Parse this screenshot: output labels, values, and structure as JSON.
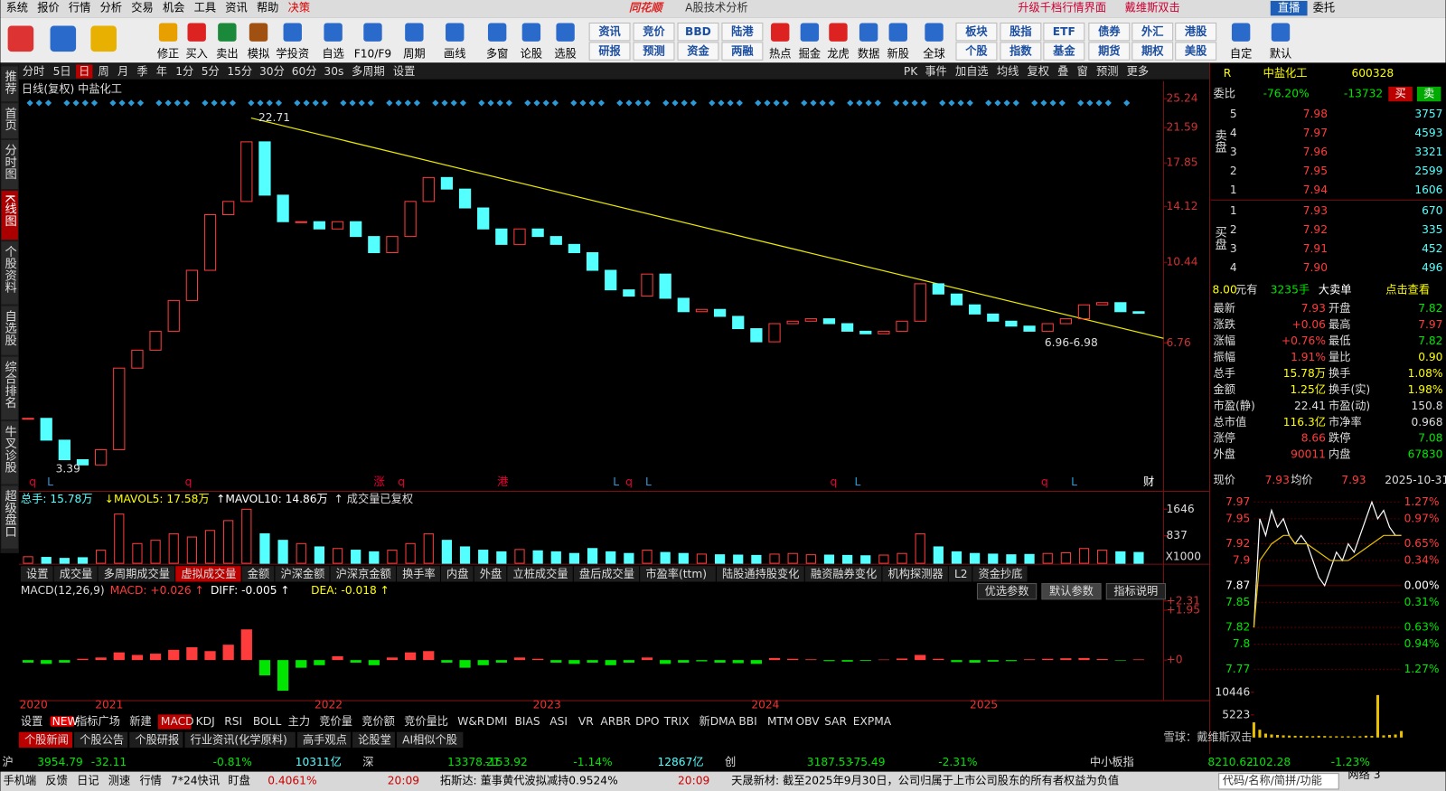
{
  "menu": {
    "items": [
      "系统",
      "报价",
      "行情",
      "分析",
      "交易",
      "机会",
      "工具",
      "资讯",
      "帮助",
      "决策"
    ],
    "logo": "同花顺",
    "mode": "A股技术分析",
    "right": [
      "升级千档行情界面",
      "戴维斯双击"
    ],
    "live": "直播",
    "order": "委托"
  },
  "toolbar": {
    "tools": [
      "修正",
      "买入",
      "卖出",
      "模拟",
      "学投资",
      "自选",
      "F10/F9",
      "周期",
      "画线",
      "多窗",
      "论股",
      "选股"
    ],
    "grid": [
      [
        "资讯",
        "竞价",
        "BBD",
        "陆港"
      ],
      [
        "研报",
        "预测",
        "资金",
        "两融"
      ]
    ],
    "tools2": [
      "热点",
      "掘金",
      "龙虎",
      "数据",
      "新股",
      "全球"
    ],
    "grid2": [
      [
        "板块",
        "股指",
        "ETF",
        "债券",
        "外汇",
        "港股"
      ],
      [
        "个股",
        "指数",
        "基金",
        "期货",
        "期权",
        "美股"
      ]
    ],
    "tools3": [
      "自定",
      "默认"
    ]
  },
  "sidebar": [
    "推荐",
    "首页",
    "分时图",
    "K线图",
    "个股资料",
    "自选股",
    "综合排名",
    "牛叉诊股",
    "超级盘口"
  ],
  "periods": [
    "分时",
    "5日",
    "日",
    "周",
    "月",
    "季",
    "年",
    "1分",
    "5分",
    "15分",
    "30分",
    "60分",
    "30s",
    "多周期",
    "设置"
  ],
  "chart_tools": [
    "PK",
    "事件",
    "加自选",
    "均线",
    "复权",
    "叠",
    "窗",
    "预测",
    "更多"
  ],
  "kline": {
    "title": "日线(复权)",
    "name": "中盐化工",
    "closes": [
      4.5,
      4.0,
      3.6,
      3.5,
      3.8,
      5.9,
      6.5,
      7.2,
      8.5,
      10,
      13.5,
      14.5,
      20,
      15,
      13,
      13,
      12.5,
      13,
      12,
      11,
      12,
      14.5,
      16.5,
      15.5,
      14,
      12.5,
      11.5,
      12.5,
      12,
      11.5,
      11,
      10,
      9.0,
      8.7,
      9.8,
      8.6,
      8.0,
      8.1,
      7.8,
      7.3,
      6.8,
      7.5,
      7.6,
      7.7,
      7.5,
      7.2,
      7.1,
      7.2,
      7.6,
      9.3,
      8.8,
      8.3,
      7.9,
      7.6,
      7.4,
      7.2,
      7.5,
      7.7,
      8.3,
      8.4,
      8.0,
      7.93
    ],
    "ylim": [
      3.08,
      26.8
    ],
    "log": true,
    "yticks": [
      25.24,
      21.59,
      17.85,
      14.12,
      10.44,
      6.76
    ],
    "annotations": [
      "22.71",
      "3.39",
      "6.96-6.98"
    ],
    "events": [
      "q",
      "L",
      "q",
      "涨",
      "q",
      "港",
      "L",
      "q",
      "L",
      "q",
      "L",
      "q",
      "L",
      "财"
    ],
    "years": [
      "2020",
      "2021",
      "2022",
      "2023",
      "2024",
      "2025"
    ]
  },
  "volume": {
    "header": [
      "总手: 15.78万",
      "↓MAVOL5: 17.58万",
      "↑MAVOL10: 14.86万",
      "↑ 成交量已复权"
    ],
    "values": [
      200,
      180,
      150,
      170,
      400,
      1500,
      600,
      700,
      900,
      800,
      1000,
      1300,
      1646,
      900,
      700,
      600,
      500,
      450,
      400,
      350,
      400,
      600,
      900,
      700,
      500,
      400,
      350,
      420,
      380,
      350,
      300,
      450,
      350,
      300,
      400,
      330,
      300,
      280,
      260,
      250,
      240,
      280,
      300,
      260,
      250,
      240,
      230,
      250,
      300,
      900,
      500,
      350,
      300,
      280,
      260,
      270,
      300,
      320,
      450,
      400,
      350,
      330
    ],
    "ylim": [
      0,
      2050
    ],
    "yticks": [
      1646,
      837
    ],
    "unit": "X1000"
  },
  "volume_tabs": [
    "设置",
    "成交量",
    "多周期成交量",
    "虚拟成交量",
    "金额",
    "沪深金额",
    "沪深京金额",
    "换手率",
    "内盘",
    "外盘",
    "立桩成交量",
    "盘后成交量",
    "市盈率(ttm)",
    "陆股通持股变化",
    "融资融券变化",
    "机构探测器",
    "L2",
    "资金抄底"
  ],
  "macd": {
    "header": [
      "MACD(12,26,9)",
      "MACD: +0.026 ↑",
      "DIFF: -0.005 ↑",
      "DEA: -0.018 ↑"
    ],
    "buttons": [
      "优选参数",
      "默认参数",
      "指标说明"
    ],
    "hist": [
      -0.1,
      -0.15,
      -0.1,
      0.05,
      0.1,
      0.3,
      0.2,
      0.25,
      0.4,
      0.5,
      0.35,
      0.6,
      1.2,
      -0.6,
      -1.2,
      -0.3,
      -0.2,
      0.15,
      -0.1,
      -0.2,
      0.1,
      0.3,
      0.35,
      -0.1,
      -0.3,
      -0.2,
      -0.1,
      0.1,
      0.05,
      -0.1,
      -0.15,
      -0.1,
      -0.2,
      -0.1,
      0.1,
      -0.15,
      -0.1,
      -0.05,
      -0.1,
      -0.12,
      -0.15,
      0.08,
      0.05,
      0.03,
      -0.04,
      -0.06,
      -0.03,
      0.02,
      0.06,
      0.2,
      0.05,
      -0.08,
      -0.1,
      -0.06,
      -0.04,
      0.03,
      0.05,
      0.07,
      0.08,
      0.04,
      -0.02,
      0.026
    ],
    "ylim": [
      -1.48,
      2.74
    ],
    "yticks": [
      {
        "value": 2.31,
        "label": "+2.31"
      },
      {
        "value": 1.95,
        "label": "+1.95"
      },
      {
        "value": 0,
        "label": "+0"
      }
    ]
  },
  "indicator_tabs": {
    "badge": "NEW",
    "items": [
      "设置",
      "指标广场",
      "新建",
      "MACD",
      "KDJ",
      "RSI",
      "BOLL",
      "主力",
      "竞价量",
      "竞价额",
      "竞价量比",
      "W&R",
      "DMI",
      "BIAS",
      "ASI",
      "VR",
      "ARBR",
      "DPO",
      "TRIX",
      "新DMA",
      "BBI",
      "MTM",
      "OBV",
      "SAR",
      "EXPMA"
    ]
  },
  "news_tabs": [
    "个股新闻",
    "个股公告",
    "个股研报",
    "行业资讯(化学原料)",
    "高手观点",
    "论股堂",
    "AI相似个股"
  ],
  "index_bar": [
    [
      "沪",
      "3954.79",
      "-32.11",
      "-0.81%",
      "10311亿"
    ],
    [
      "深",
      "13378.21",
      "-153.92",
      "-1.14%",
      "12867亿"
    ],
    [
      "创",
      "3187.53",
      "-75.49",
      "-2.31%"
    ],
    [
      "中小板指",
      "8210.62",
      "-102.28",
      "-1.23%"
    ]
  ],
  "status": {
    "items": [
      "手机端",
      "反馈",
      "日记",
      "测速",
      "行情",
      "7*24快讯",
      "盯盘"
    ],
    "ticker": "0.4061%",
    "news": [
      {
        "time": "20:09",
        "text": "拓斯达: 董事黄代波拟减持0.9524%"
      },
      {
        "time": "20:09",
        "text": "天晟新材: 截至2025年9月30日，公司归属于上市公司股东的所有者权益为负值"
      }
    ],
    "search": "代码/名称/简拼/功能",
    "network": "网络 3"
  },
  "quote": {
    "flag": "R",
    "name": "中盐化工",
    "code": "600328",
    "ratio": [
      "委比",
      "-76.20%",
      "-13732"
    ],
    "buttons": [
      "买",
      "卖"
    ],
    "sell_label": "卖盘",
    "buy_label": "买盘",
    "asks": [
      [
        "5",
        "7.98",
        "3757"
      ],
      [
        "4",
        "7.97",
        "4593"
      ],
      [
        "3",
        "7.96",
        "3321"
      ],
      [
        "2",
        "7.95",
        "2599"
      ],
      [
        "1",
        "7.94",
        "1606"
      ]
    ],
    "bids": [
      [
        "1",
        "7.93",
        "670"
      ],
      [
        "2",
        "7.92",
        "335"
      ],
      [
        "3",
        "7.91",
        "452"
      ],
      [
        "4",
        "7.90",
        "496"
      ]
    ],
    "big_order": [
      "8.00",
      "元有",
      "3235手",
      "大卖单",
      "点击查看"
    ],
    "stats": [
      [
        "最新",
        "7.93",
        "开盘",
        "7.82"
      ],
      [
        "涨跌",
        "+0.06",
        "最高",
        "7.97"
      ],
      [
        "涨幅",
        "+0.76%",
        "最低",
        "7.82"
      ],
      [
        "振幅",
        "1.91%",
        "量比",
        "0.90"
      ],
      [
        "总手",
        "15.78万",
        "换手",
        "1.08%"
      ],
      [
        "金额",
        "1.25亿",
        "换手(实)",
        "1.98%"
      ],
      [
        "市盈(静)",
        "22.41",
        "市盈(动)",
        "150.8"
      ],
      [
        "总市值",
        "116.3亿",
        "市净率",
        "0.968"
      ],
      [
        "涨停",
        "8.66",
        "跌停",
        "7.08"
      ],
      [
        "外盘",
        "90011",
        "内盘",
        "67830"
      ]
    ]
  },
  "intraday": {
    "header": [
      "现价",
      "7.93",
      "均价",
      "7.93",
      "2025-10-31"
    ],
    "prices": [
      7.82,
      7.95,
      7.93,
      7.96,
      7.94,
      7.95,
      7.93,
      7.92,
      7.93,
      7.92,
      7.9,
      7.88,
      7.87,
      7.89,
      7.91,
      7.9,
      7.92,
      7.91,
      7.93,
      7.95,
      7.97,
      7.95,
      7.96,
      7.94,
      7.93,
      7.93
    ],
    "avg": [
      7.82,
      7.9,
      7.91,
      7.92,
      7.925,
      7.93,
      7.93,
      7.92,
      7.92,
      7.92,
      7.915,
      7.91,
      7.905,
      7.9,
      7.9,
      7.9,
      7.9,
      7.905,
      7.91,
      7.915,
      7.92,
      7.925,
      7.93,
      7.93,
      7.93,
      7.93
    ],
    "ylim": [
      7.76,
      7.975
    ],
    "yticks": [
      7.97,
      7.95,
      7.92,
      7.9,
      7.87,
      7.85,
      7.82,
      7.8,
      7.77
    ],
    "pct_labels": [
      "1.27%",
      "0.97%",
      "0.65%",
      "0.34%",
      "0.00%",
      "0.31%",
      "0.63%",
      "0.94%",
      "1.27%"
    ],
    "volume": [
      3500,
      1800,
      900,
      700,
      600,
      500,
      450,
      400,
      380,
      350,
      320,
      400,
      350,
      300,
      300,
      280,
      300,
      260,
      300,
      420,
      380,
      9800,
      500,
      600,
      700,
      1500
    ],
    "vlim": [
      0,
      11700
    ],
    "vticks": [
      10446,
      5223
    ]
  },
  "watermark": "雪球：戴维斯双击"
}
